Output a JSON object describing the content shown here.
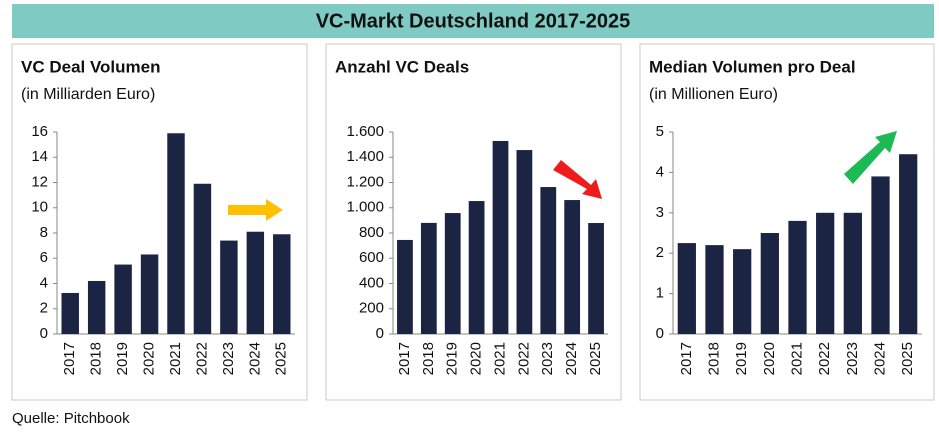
{
  "header": {
    "title": "VC-Markt Deutschland 2017-2025"
  },
  "source": "Quelle: Pitchbook",
  "chart_data": [
    {
      "type": "bar",
      "title": "VC Deal Volumen",
      "subtitle": "(in Milliarden Euro)",
      "categories": [
        "2017",
        "2018",
        "2019",
        "2020",
        "2021",
        "2022",
        "2023",
        "2024",
        "2025"
      ],
      "values": [
        3.25,
        4.2,
        5.5,
        6.3,
        15.9,
        11.9,
        7.4,
        8.1,
        7.9
      ],
      "color": "#1c2444",
      "ylim": [
        0,
        16
      ],
      "yticks": [
        0,
        2,
        4,
        6,
        8,
        10,
        12,
        14,
        16
      ],
      "grid": false
    },
    {
      "type": "bar",
      "title": "Anzahl VC Deals",
      "categories": [
        "2017",
        "2018",
        "2019",
        "2020",
        "2021",
        "2022",
        "2023",
        "2024",
        "2025"
      ],
      "values": [
        745,
        880,
        958,
        1053,
        1529,
        1457,
        1164,
        1061,
        879
      ],
      "color": "#1c2444",
      "ylim": [
        0,
        1600
      ],
      "yticks": [
        0,
        200,
        400,
        600,
        800,
        {
          "value": 1000,
          "label": "1.000"
        },
        {
          "value": 1200,
          "label": "1.200"
        },
        {
          "value": 1400,
          "label": "1.400"
        },
        {
          "value": 1600,
          "label": "1.600"
        }
      ],
      "grid": false
    },
    {
      "type": "bar",
      "title": "Median Volumen pro Deal",
      "subtitle": "(in Millionen Euro)",
      "categories": [
        "2017",
        "2018",
        "2019",
        "2020",
        "2021",
        "2022",
        "2023",
        "2024",
        "2025"
      ],
      "values": [
        2.25,
        2.2,
        2.1,
        2.5,
        2.8,
        3.0,
        3.0,
        3.9,
        4.45
      ],
      "color": "#1c2444",
      "ylim": [
        0,
        5
      ],
      "yticks": [
        0,
        1,
        2,
        3,
        4,
        5
      ],
      "grid": false
    }
  ]
}
